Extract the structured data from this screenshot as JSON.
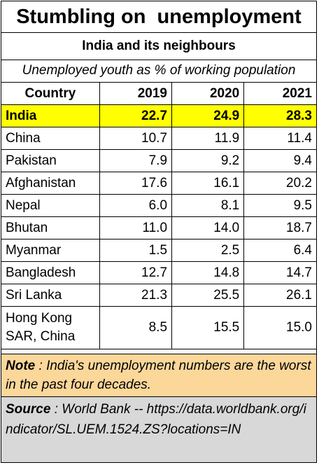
{
  "title": "Stumbling on  unemployment",
  "subtitle": "India and its neighbours",
  "caption": "Unemployed youth as % of working population",
  "colors": {
    "highlight": "#ffff00",
    "note_bg": "#fbd79a",
    "source_bg": "#d8d8d8"
  },
  "chart_data": {
    "type": "table",
    "columns": [
      "Country",
      "2019",
      "2020",
      "2021"
    ],
    "rows": [
      {
        "country": "India",
        "values": [
          "22.7",
          "24.9",
          "28.3"
        ],
        "highlight": true
      },
      {
        "country": "China",
        "values": [
          "10.7",
          "11.9",
          "11.4"
        ]
      },
      {
        "country": "Pakistan",
        "values": [
          "7.9",
          "9.2",
          "9.4"
        ]
      },
      {
        "country": "Afghanistan",
        "values": [
          "17.6",
          "16.1",
          "20.2"
        ]
      },
      {
        "country": "Nepal",
        "values": [
          "6.0",
          "8.1",
          "9.5"
        ]
      },
      {
        "country": "Bhutan",
        "values": [
          "11.0",
          "14.0",
          "18.7"
        ]
      },
      {
        "country": "Myanmar",
        "values": [
          "1.5",
          "2.5",
          "6.4"
        ]
      },
      {
        "country": "Bangladesh",
        "values": [
          "12.7",
          "14.8",
          "14.7"
        ]
      },
      {
        "country": "Sri Lanka",
        "values": [
          "21.3",
          "25.5",
          "26.1"
        ]
      },
      {
        "country": "Hong Kong SAR, China",
        "values": [
          "8.5",
          "15.5",
          "15.0"
        ],
        "tall": true
      }
    ]
  },
  "note": {
    "label": "Note",
    "text": " : India's unemployment numbers are the worst in the past four decades."
  },
  "source": {
    "label": "Source",
    "text": " : World Bank -- https://data.worldbank.org/indicator/SL.UEM.1524.ZS?locations=IN"
  }
}
